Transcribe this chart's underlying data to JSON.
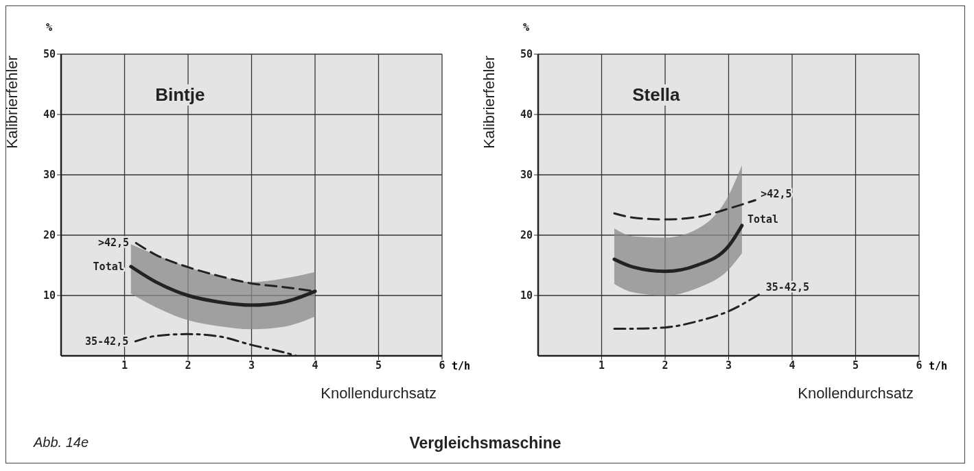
{
  "chart_data": [
    {
      "type": "line",
      "title": "Bintje",
      "xlabel": "Knollendurchsatz",
      "ylabel": "Kalibrierfehler",
      "annotations": [
        "%",
        "t/h",
        "Abb. 14e",
        "Vergleichsmaschine"
      ],
      "xlim": [
        0,
        6
      ],
      "xticks": [
        1,
        2,
        3,
        4,
        5,
        6
      ],
      "ylim": [
        0,
        50
      ],
      "yticks": [
        10,
        20,
        30,
        40,
        50
      ],
      "grid": true,
      "marker": "none",
      "series": [
        {
          "name": ">42,5",
          "color": "#222222",
          "line_style": "dashed",
          "x": [
            1.18,
            1.5,
            2,
            2.5,
            3,
            3.5,
            4
          ],
          "values": [
            18.7,
            16.7,
            14.7,
            13.2,
            12.0,
            11.4,
            10.7
          ]
        },
        {
          "name": "Total",
          "color": "#222222",
          "line_style": "solid",
          "x": [
            1.1,
            1.5,
            2,
            2.5,
            3,
            3.5,
            4
          ],
          "values": [
            14.8,
            12.2,
            10.0,
            8.9,
            8.4,
            8.9,
            10.7
          ],
          "lower": [
            10.3,
            8.0,
            5.9,
            4.9,
            4.4,
            4.8,
            6.5
          ],
          "upper": [
            18.5,
            16.7,
            14.7,
            13.2,
            12.2,
            12.8,
            13.9
          ]
        },
        {
          "name": "35-42,5",
          "color": "#222222",
          "line_style": "dashdot",
          "x": [
            1.17,
            1.5,
            2,
            2.5,
            3,
            3.5,
            3.7
          ],
          "values": [
            2.4,
            3.3,
            3.6,
            3.2,
            1.8,
            0.6,
            0
          ]
        }
      ]
    },
    {
      "type": "line",
      "title": "Stella",
      "xlabel": "Knollendurchsatz",
      "ylabel": "Kalibrierfehler",
      "annotations": [
        "%",
        "t/h"
      ],
      "xlim": [
        0,
        6
      ],
      "xticks": [
        1,
        2,
        3,
        4,
        5,
        6
      ],
      "ylim": [
        0,
        50
      ],
      "yticks": [
        10,
        20,
        30,
        40,
        50
      ],
      "grid": true,
      "marker": "none",
      "series": [
        {
          "name": ">42,5",
          "color": "#222222",
          "line_style": "dashed",
          "x": [
            1.2,
            1.5,
            2,
            2.5,
            3,
            3.42
          ],
          "values": [
            23.6,
            22.9,
            22.6,
            23.0,
            24.4,
            25.8
          ]
        },
        {
          "name": "Total",
          "color": "#222222",
          "line_style": "solid",
          "x": [
            1.2,
            1.5,
            2,
            2.5,
            3,
            3.21
          ],
          "values": [
            16.0,
            14.7,
            14.0,
            15.0,
            18.2,
            21.6
          ],
          "lower": [
            11.9,
            10.5,
            10.0,
            11.2,
            14.3,
            17.0
          ],
          "upper": [
            21.1,
            19.8,
            19.6,
            21.0,
            26.6,
            31.6
          ]
        },
        {
          "name": "35-42,5",
          "color": "#222222",
          "line_style": "dashdot",
          "x": [
            1.2,
            1.5,
            2,
            2.5,
            3,
            3.5
          ],
          "values": [
            4.5,
            4.5,
            4.7,
            5.7,
            7.4,
            10.3
          ]
        }
      ]
    }
  ]
}
